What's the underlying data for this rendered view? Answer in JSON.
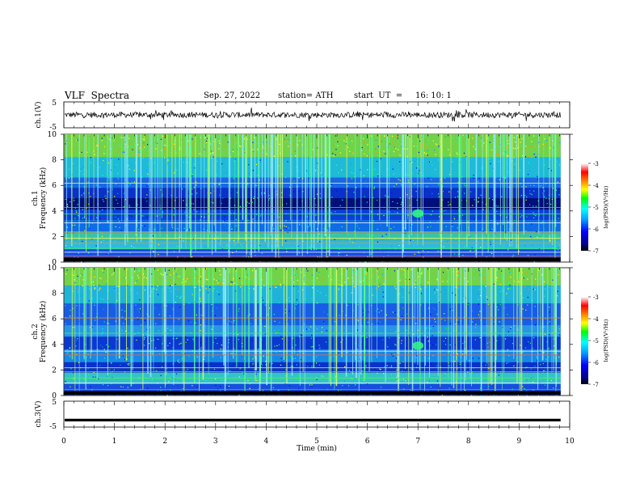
{
  "header": {
    "title": "VLF  Spectra",
    "date": "Sep. 27, 2022",
    "station": "station= ATH",
    "start": "start  UT  =     16: 10: 1"
  },
  "chart_data": [
    {
      "type": "line",
      "panel": "ch1-waveform",
      "ylabel": "ch.1(V)",
      "ylim": [
        -5,
        5
      ],
      "yticks": [
        "5",
        "-5"
      ],
      "xlim": [
        0,
        10
      ]
    },
    {
      "type": "heatmap",
      "panel": "ch1-spectrogram",
      "channel_label": "ch.1",
      "ylabel": "Frequency (kHz)",
      "ylim": [
        0,
        10
      ],
      "yticks": [
        "0",
        "2",
        "4",
        "6",
        "8",
        "10"
      ],
      "xlim": [
        0,
        10
      ],
      "colorbar": {
        "label": "log(PSD)(V²/Hz)",
        "range": [
          -7,
          -3
        ],
        "ticks": [
          "-3",
          "-4",
          "-5",
          "-6",
          "-7"
        ]
      }
    },
    {
      "type": "heatmap",
      "panel": "ch2-spectrogram",
      "channel_label": "ch.2",
      "ylabel": "Frequency (kHz)",
      "ylim": [
        0,
        10
      ],
      "yticks": [
        "0",
        "2",
        "4",
        "6",
        "8",
        "10"
      ],
      "xlim": [
        0,
        10
      ],
      "colorbar": {
        "label": "log(PSD)(V²/Hz)",
        "range": [
          -7,
          -3
        ],
        "ticks": [
          "-3",
          "-4",
          "-5",
          "-6",
          "-7"
        ]
      }
    },
    {
      "type": "line",
      "panel": "ch3-waveform",
      "ylabel": "ch.3(V)",
      "ylim": [
        -5,
        5
      ],
      "yticks": [
        "5",
        "-5"
      ],
      "xlim": [
        0,
        10
      ],
      "xlabel": "Time  (min)",
      "xticks": [
        "0",
        "1",
        "2",
        "3",
        "4",
        "5",
        "6",
        "7",
        "8",
        "9",
        "10"
      ],
      "constant_value": -2.3
    }
  ]
}
